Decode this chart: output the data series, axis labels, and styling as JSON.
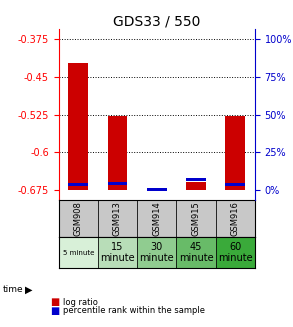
{
  "title": "GDS33 / 550",
  "samples": [
    "GSM908",
    "GSM913",
    "GSM914",
    "GSM915",
    "GSM916"
  ],
  "time_labels": [
    "5 minute",
    "15\nminute",
    "30\nminute",
    "45\nminute",
    "60\nminute"
  ],
  "time_colors": [
    "#d8f0d8",
    "#b8ddb8",
    "#90cc90",
    "#68bb68",
    "#3aaa3a"
  ],
  "log_ratios": [
    -0.422,
    -0.528,
    -0.675,
    -0.659,
    -0.527
  ],
  "percentile_ranks": [
    3.5,
    4.0,
    0.5,
    7.0,
    3.5
  ],
  "bar_bottom": -0.675,
  "ylim_min": -0.695,
  "ylim_max": -0.355,
  "yticks_left": [
    -0.375,
    -0.45,
    -0.525,
    -0.6,
    -0.675
  ],
  "yticks_right_vals": [
    100,
    75,
    50,
    25,
    0
  ],
  "red_color": "#cc0000",
  "blue_color": "#0000cc",
  "sample_bg_color": "#c8c8c8",
  "left_tick_color": "red",
  "right_tick_color": "blue",
  "bar_width": 0.5
}
